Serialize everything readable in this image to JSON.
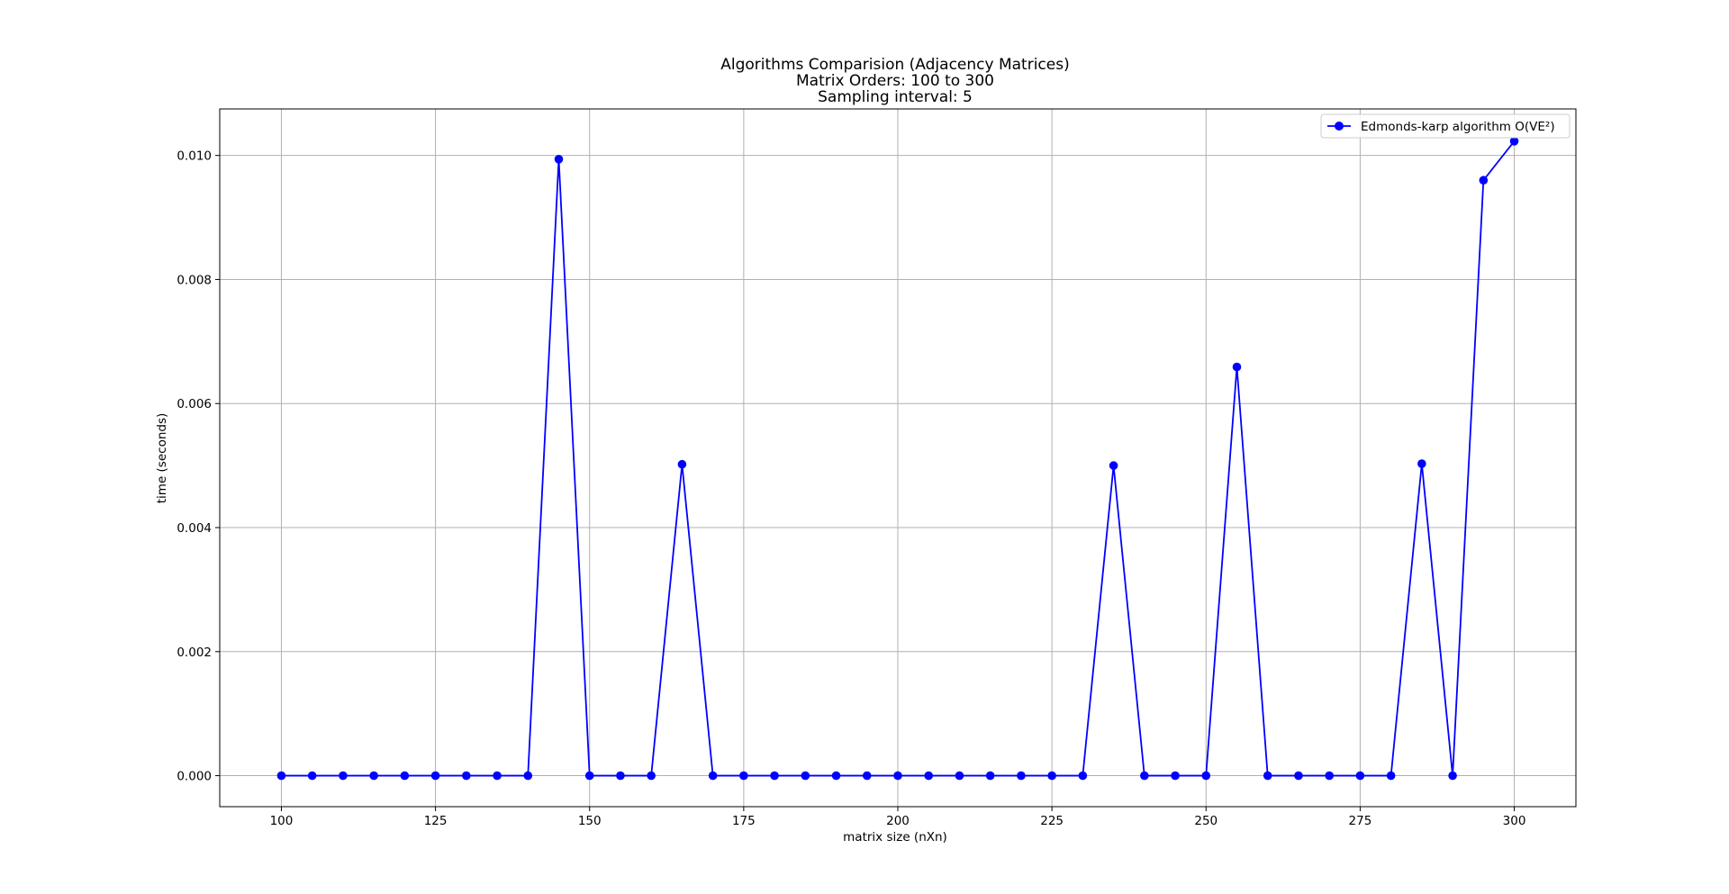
{
  "chart_data": {
    "type": "line",
    "title_lines": [
      "Algorithms Comparision (Adjacency Matrices)",
      "Matrix Orders: 100 to 300",
      "Sampling interval: 5"
    ],
    "xlabel": "matrix size (nXn)",
    "ylabel": "time (seconds)",
    "xlim": [
      90,
      310
    ],
    "ylim": [
      -0.0005,
      0.01075
    ],
    "xticks": [
      100,
      125,
      150,
      175,
      200,
      225,
      250,
      275,
      300
    ],
    "xtick_labels": [
      "100",
      "125",
      "150",
      "175",
      "200",
      "225",
      "250",
      "275",
      "300"
    ],
    "yticks": [
      0.0,
      0.002,
      0.004,
      0.006,
      0.008,
      0.01
    ],
    "ytick_labels": [
      "0.000",
      "0.002",
      "0.004",
      "0.006",
      "0.008",
      "0.010"
    ],
    "grid": true,
    "legend_position": "upper right",
    "series": [
      {
        "name": "Edmonds-karp algorithm O(VE²)",
        "color": "#0000ff",
        "marker": "circle",
        "x": [
          100,
          105,
          110,
          115,
          120,
          125,
          130,
          135,
          140,
          145,
          150,
          155,
          160,
          165,
          170,
          175,
          180,
          185,
          190,
          195,
          200,
          205,
          210,
          215,
          220,
          225,
          230,
          235,
          240,
          245,
          250,
          255,
          260,
          265,
          270,
          275,
          280,
          285,
          290,
          295,
          300
        ],
        "y": [
          0,
          0,
          0,
          0,
          0,
          0,
          0,
          0,
          0,
          0.00994,
          0,
          0,
          0,
          0.00502,
          0,
          0,
          0,
          0,
          0,
          0,
          0,
          0,
          0,
          0,
          0,
          0,
          0,
          0.005,
          0,
          0,
          0,
          0.00659,
          0,
          0,
          0,
          0,
          0,
          0.00503,
          0,
          0.0096,
          0.01023
        ]
      }
    ]
  }
}
